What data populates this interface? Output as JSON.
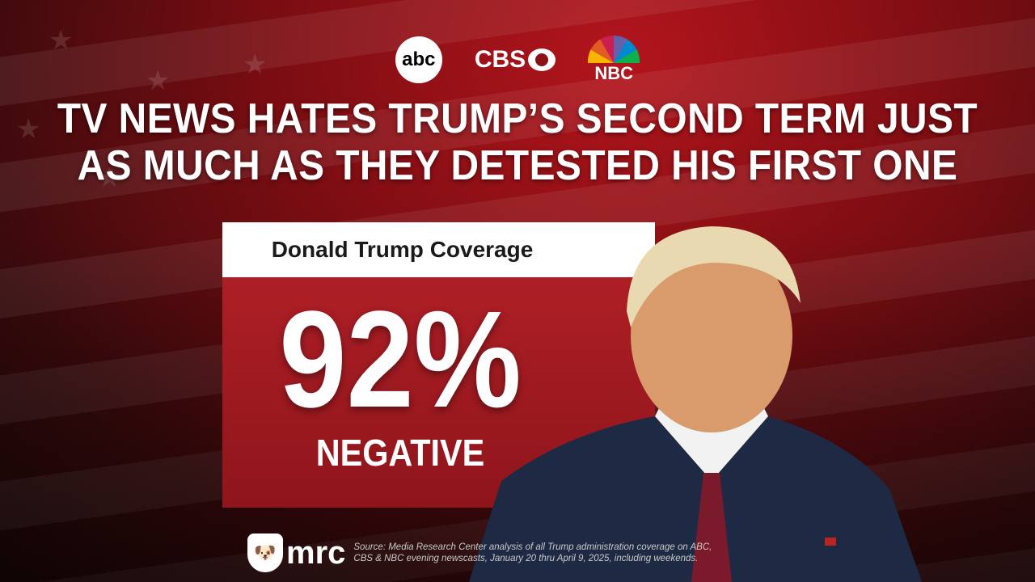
{
  "logos": {
    "abc": "abc",
    "cbs": "CBS",
    "nbc": "NBC"
  },
  "headline": {
    "line1": "TV NEWS HATES TRUMP’S SECOND TERM JUST",
    "line2": "AS MUCH AS THEY DETESTED HIS FIRST ONE"
  },
  "card": {
    "title": "Donald Trump Coverage",
    "value": "92%",
    "label": "NEGATIVE",
    "negative_percent": 92
  },
  "footer": {
    "brand": "mrc",
    "source_line1": "Source: Media Research Center analysis of all Trump administration coverage on ABC,",
    "source_line2": "CBS & NBC evening newscasts, January 20 thru April 9, 2025, including weekends."
  },
  "colors": {
    "background": "#7a0d12",
    "card": "#a81c23",
    "text": "#ffffff"
  }
}
